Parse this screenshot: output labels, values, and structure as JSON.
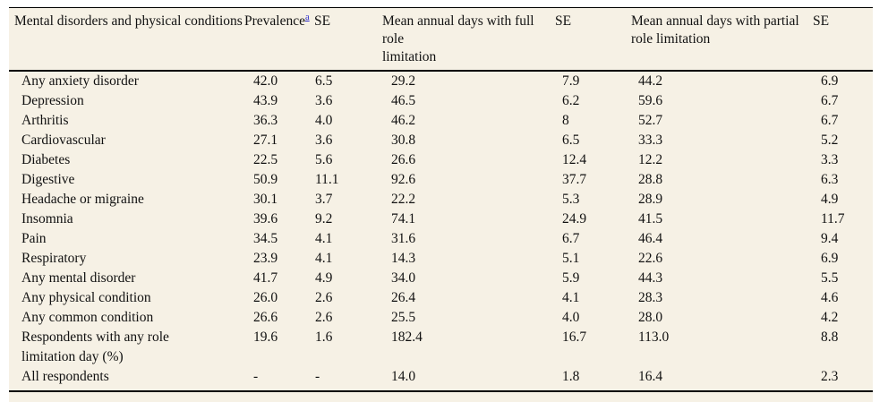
{
  "colors": {
    "table_background": "#f6f1e5",
    "text": "#111111",
    "footnote_link": "#2626c9",
    "rule": "#000000"
  },
  "table": {
    "columns": {
      "conditions": "Mental disorders and physical conditions",
      "prevalence": "Prevalence",
      "prevalence_footnote": "a",
      "se1": "SE",
      "full_role_line1": "Mean annual days with full role",
      "full_role_line2": "limitation",
      "se2": "SE",
      "partial_role_line1": "Mean annual days with partial",
      "partial_role_line2": "role limitation",
      "se3": "SE"
    },
    "rows": [
      {
        "label": "Any anxiety disorder",
        "values": [
          "42.0",
          "6.5",
          "29.2",
          "7.9",
          "44.2",
          "6.9"
        ]
      },
      {
        "label": "Depression",
        "values": [
          "43.9",
          "3.6",
          "46.5",
          "6.2",
          "59.6",
          "6.7"
        ]
      },
      {
        "label": "Arthritis",
        "values": [
          "36.3",
          "4.0",
          "46.2",
          "8",
          "52.7",
          "6.7"
        ]
      },
      {
        "label": "Cardiovascular",
        "values": [
          "27.1",
          "3.6",
          "30.8",
          "6.5",
          "33.3",
          "5.2"
        ]
      },
      {
        "label": "Diabetes",
        "values": [
          "22.5",
          "5.6",
          "26.6",
          "12.4",
          "12.2",
          "3.3"
        ]
      },
      {
        "label": "Digestive",
        "values": [
          "50.9",
          "11.1",
          "92.6",
          "37.7",
          "28.8",
          "6.3"
        ]
      },
      {
        "label": "Headache or migraine",
        "values": [
          "30.1",
          "3.7",
          "22.2",
          "5.3",
          "28.9",
          "4.9"
        ]
      },
      {
        "label": "Insomnia",
        "values": [
          "39.6",
          "9.2",
          "74.1",
          "24.9",
          "41.5",
          "11.7"
        ]
      },
      {
        "label": "Pain",
        "values": [
          "34.5",
          "4.1",
          "31.6",
          "6.7",
          "46.4",
          "9.4"
        ]
      },
      {
        "label": "Respiratory",
        "values": [
          "23.9",
          "4.1",
          "14.3",
          "5.1",
          "22.6",
          "6.9"
        ]
      },
      {
        "label": "Any mental disorder",
        "values": [
          "41.7",
          "4.9",
          "34.0",
          "5.9",
          "44.3",
          "5.5"
        ]
      },
      {
        "label": "Any physical condition",
        "values": [
          "26.0",
          "2.6",
          "26.4",
          "4.1",
          "28.3",
          "4.6"
        ]
      },
      {
        "label": "Any common condition",
        "values": [
          "26.6",
          "2.6",
          "25.5",
          "4.0",
          "28.0",
          "4.2"
        ]
      },
      {
        "label": "Respondents with any role",
        "label2": "limitation day (%)",
        "values": [
          "19.6",
          "1.6",
          "182.4",
          "16.7",
          "113.0",
          "8.8"
        ]
      },
      {
        "label": "All respondents",
        "values": [
          "-",
          "-",
          "14.0",
          "1.8",
          "16.4",
          "2.3"
        ]
      }
    ]
  }
}
